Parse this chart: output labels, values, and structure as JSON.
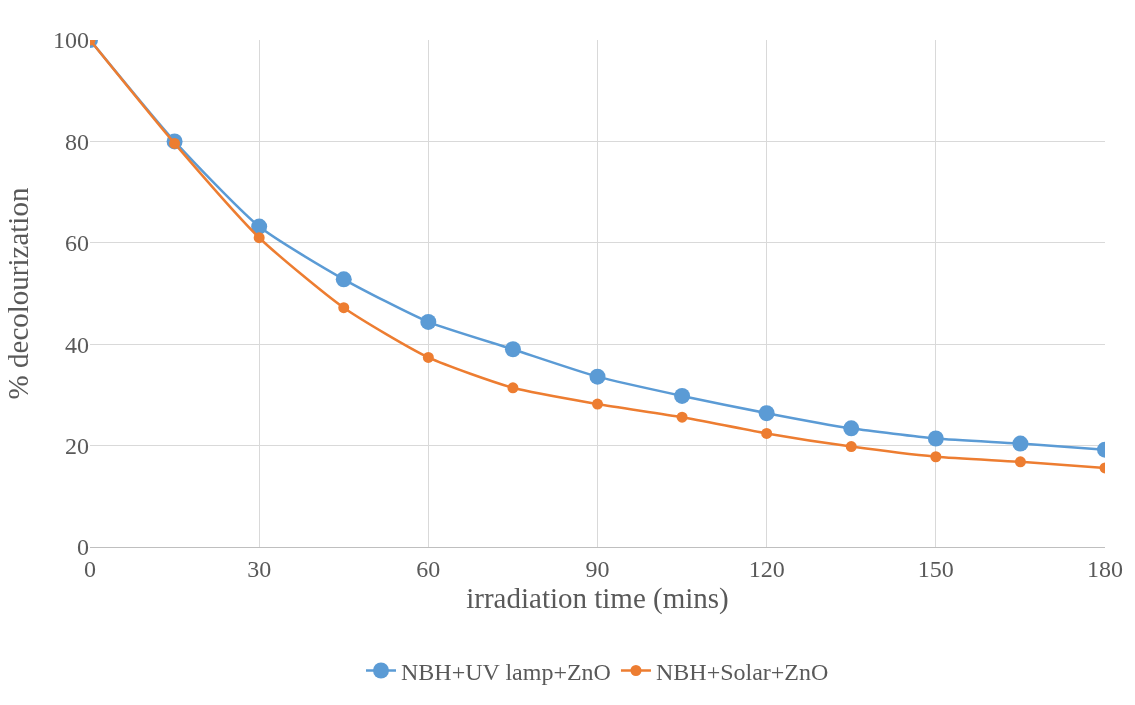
{
  "chart_data": {
    "type": "line",
    "xlabel": "irradiation time (mins)",
    "ylabel": "% decolourization",
    "x": [
      0,
      15,
      30,
      45,
      60,
      75,
      90,
      105,
      120,
      135,
      150,
      165,
      180
    ],
    "series": [
      {
        "name": "NBH+UV lamp+ZnO",
        "color": "#5b9bd5",
        "values": [
          100,
          80,
          63.2,
          52.8,
          44.4,
          39,
          33.6,
          29.8,
          26.4,
          23.4,
          21.4,
          20.4,
          19.2
        ]
      },
      {
        "name": "NBH+Solar+ZnO",
        "color": "#ed7d31",
        "values": [
          100,
          79.6,
          61,
          47.2,
          37.4,
          31.4,
          28.2,
          25.6,
          22.4,
          19.8,
          17.8,
          16.8,
          15.6
        ]
      }
    ],
    "xlim": [
      0,
      180
    ],
    "xticks": [
      0,
      30,
      60,
      90,
      120,
      150,
      180
    ],
    "ylim": [
      0,
      100
    ],
    "yticks": [
      0,
      20,
      40,
      60,
      80,
      100
    ],
    "grid": true,
    "legend": "bottom",
    "marker": "circle",
    "line_style": "solid"
  }
}
